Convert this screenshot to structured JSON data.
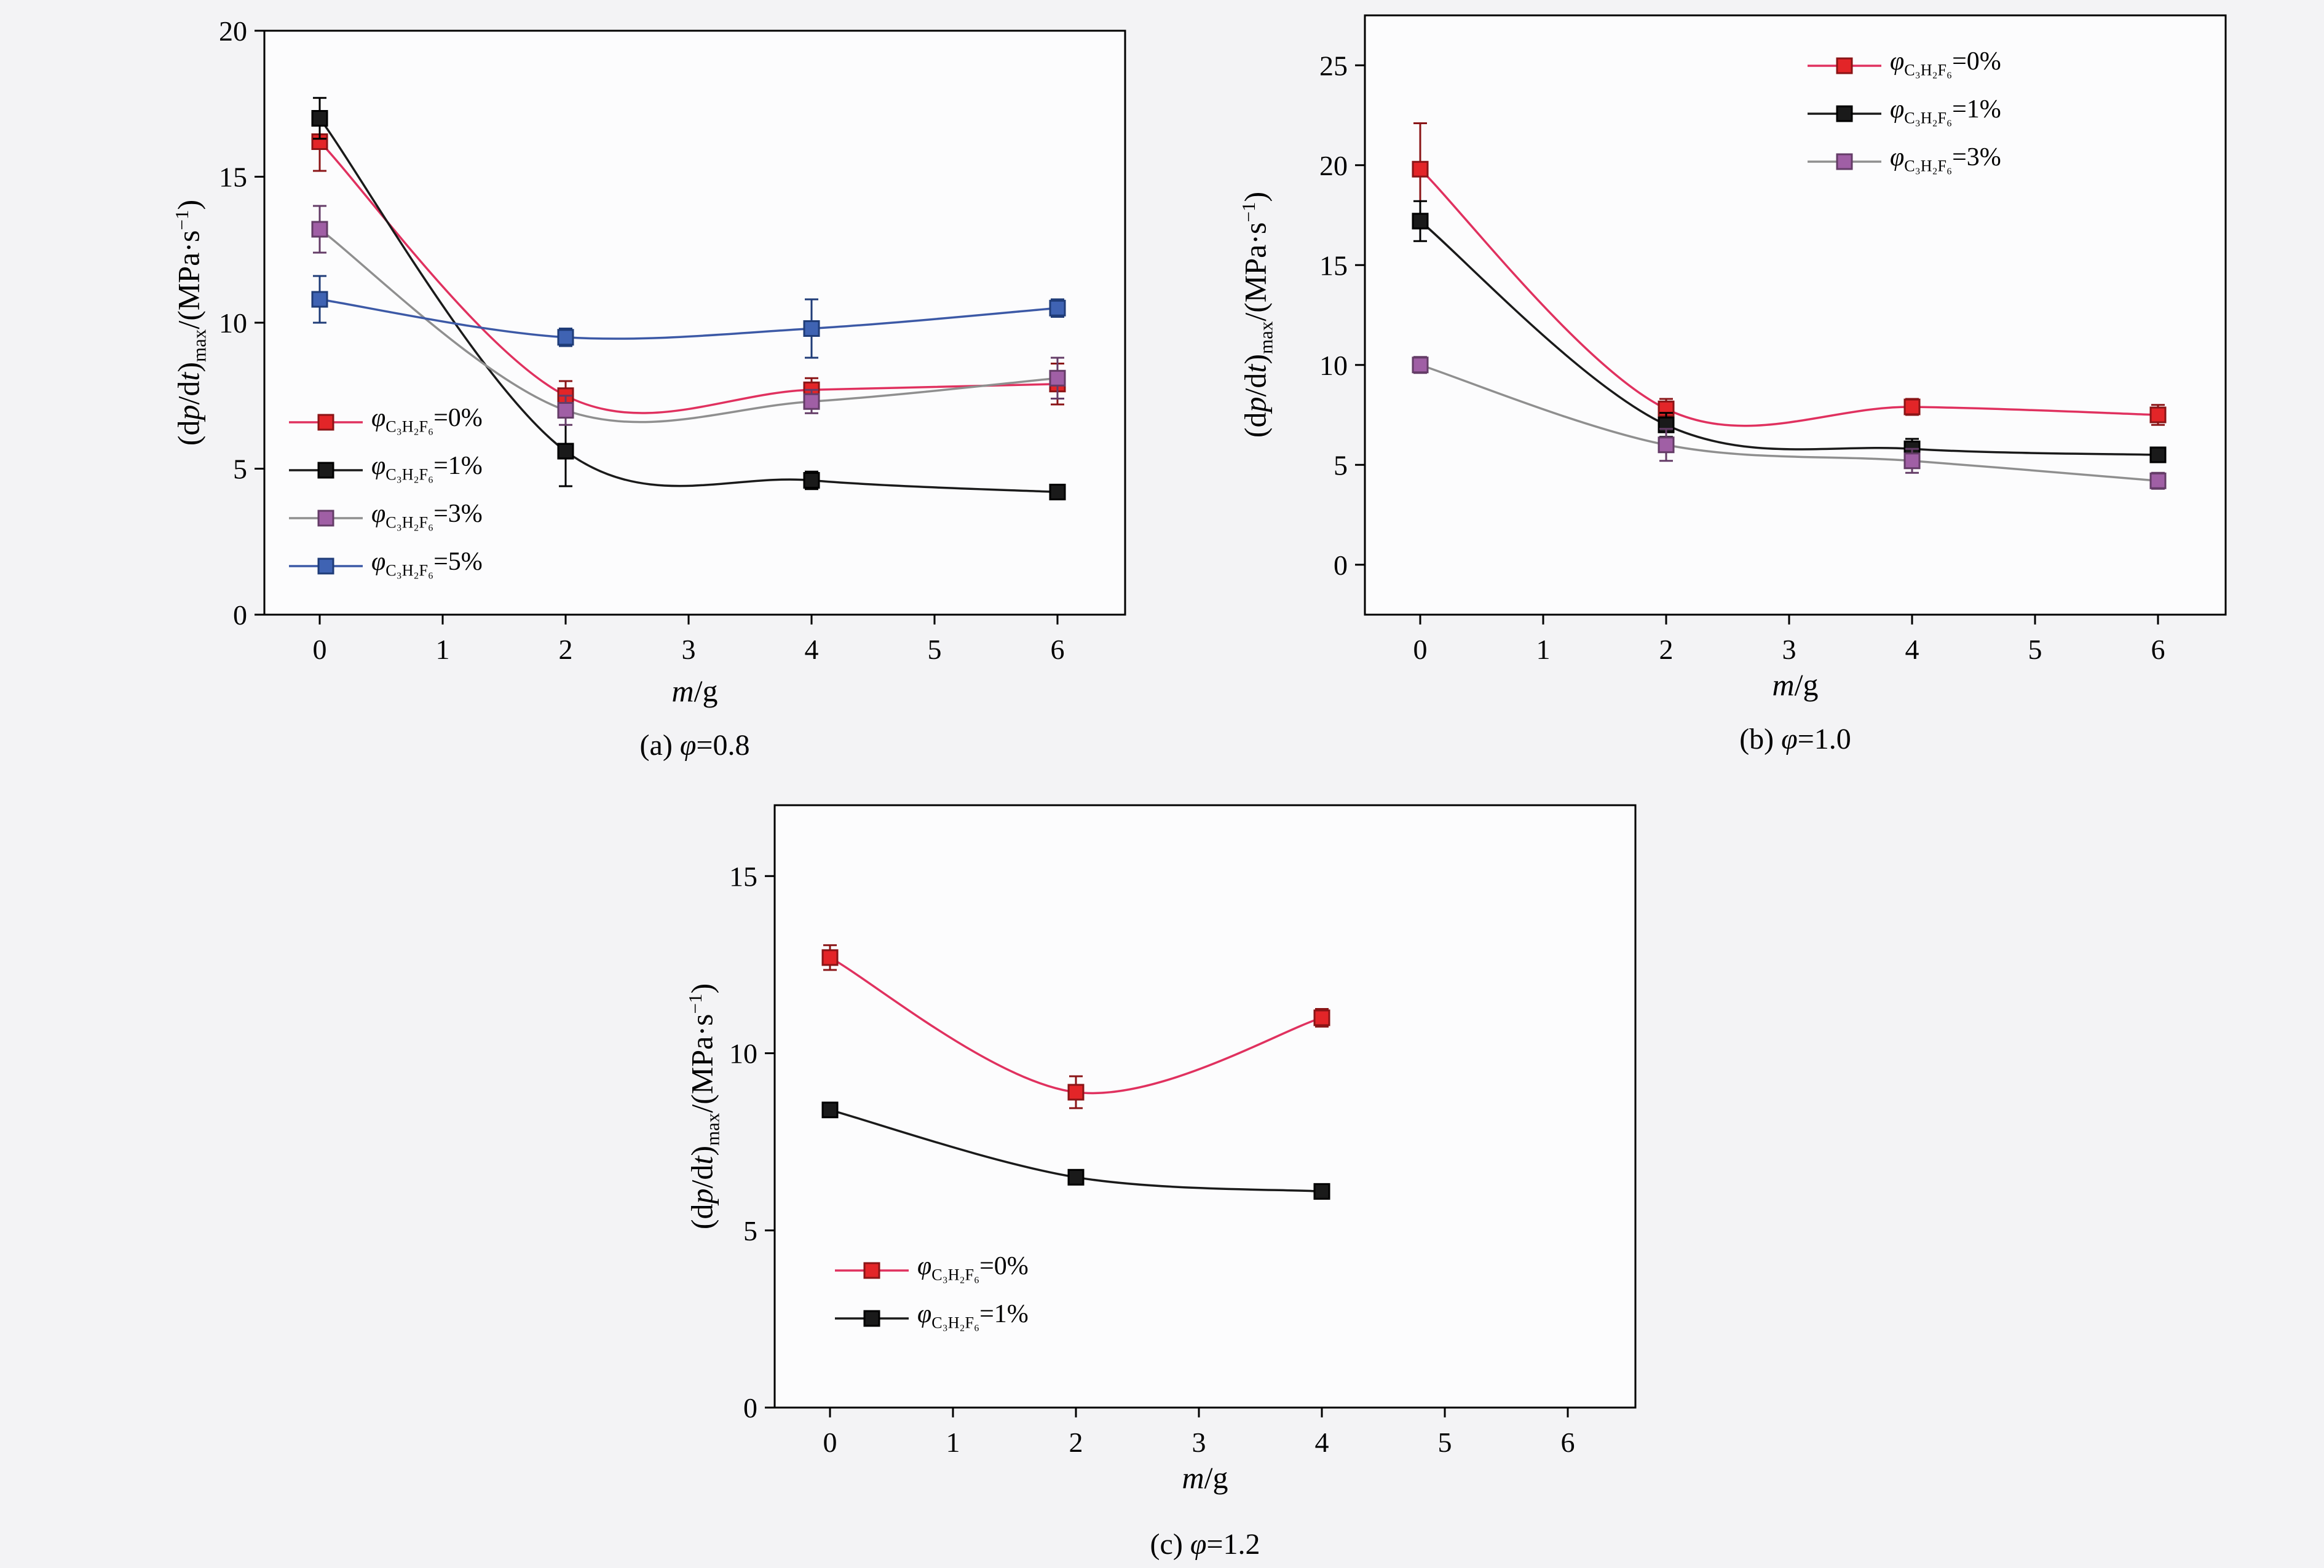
{
  "page": {
    "background": "#f3f3f5"
  },
  "charts": [
    {
      "id": "a",
      "caption_parts": [
        {
          "t": "(a) ",
          "s": "n"
        },
        {
          "t": "φ",
          "s": "i"
        },
        {
          "t": "=0.8",
          "s": "n"
        }
      ],
      "xlabel_parts": [
        {
          "t": "m",
          "s": "i"
        },
        {
          "t": "/g",
          "s": "n"
        }
      ],
      "ylabel_parts": [
        {
          "t": "(d",
          "s": "n"
        },
        {
          "t": "p",
          "s": "i"
        },
        {
          "t": "/d",
          "s": "n"
        },
        {
          "t": "t",
          "s": "i"
        },
        {
          "t": ")",
          "s": "n"
        },
        {
          "t": "max",
          "s": "sub"
        },
        {
          "t": "/(MPa·s",
          "s": "n"
        },
        {
          "t": "−1",
          "s": "sup"
        },
        {
          "t": ")",
          "s": "n"
        }
      ],
      "chart_data": {
        "type": "line",
        "x": [
          0,
          2,
          4,
          6
        ],
        "xlim": [
          -0.45,
          6.55
        ],
        "ylim": [
          0,
          20
        ],
        "xticks": [
          0,
          1,
          2,
          3,
          4,
          5,
          6
        ],
        "yticks": [
          0,
          5,
          10,
          15,
          20
        ],
        "legend_position": "lower-left",
        "grid": false,
        "series": [
          {
            "name": "φC₃H₂F₆=0%",
            "label_parts": [
              {
                "t": "φ",
                "s": "i"
              },
              {
                "t": "C₃H₂F₆",
                "s": "sub"
              },
              {
                "t": "=0%",
                "s": "n"
              }
            ],
            "line_color": "#e0315f",
            "marker_color": "#e32528",
            "marker_edge": "#8a1416",
            "y": [
              16.2,
              7.5,
              7.7,
              7.9
            ],
            "yerr": [
              1.0,
              0.5,
              0.4,
              0.7
            ]
          },
          {
            "name": "φC₃H₂F₆=1%",
            "label_parts": [
              {
                "t": "φ",
                "s": "i"
              },
              {
                "t": "C₃H₂F₆",
                "s": "sub"
              },
              {
                "t": "=1%",
                "s": "n"
              }
            ],
            "line_color": "#1a1a1a",
            "marker_color": "#1a1a1a",
            "marker_edge": "#000000",
            "y": [
              17.0,
              5.6,
              4.6,
              4.2
            ],
            "yerr": [
              0.7,
              1.2,
              0.3,
              0.2
            ]
          },
          {
            "name": "φC₃H₂F₆=3%",
            "label_parts": [
              {
                "t": "φ",
                "s": "i"
              },
              {
                "t": "C₃H₂F₆",
                "s": "sub"
              },
              {
                "t": "=3%",
                "s": "n"
              }
            ],
            "line_color": "#8f8f8f",
            "marker_color": "#a05fa5",
            "marker_edge": "#643c67",
            "y": [
              13.2,
              7.0,
              7.3,
              8.1
            ],
            "yerr": [
              0.8,
              0.5,
              0.4,
              0.7
            ]
          },
          {
            "name": "φC₃H₂F₆=5%",
            "label_parts": [
              {
                "t": "φ",
                "s": "i"
              },
              {
                "t": "C₃H₂F₆",
                "s": "sub"
              },
              {
                "t": "=5%",
                "s": "n"
              }
            ],
            "line_color": "#3c59a6",
            "marker_color": "#3f63b3",
            "marker_edge": "#1f3c78",
            "y": [
              10.8,
              9.5,
              9.8,
              10.5
            ],
            "yerr": [
              0.8,
              0.3,
              1.0,
              0.3
            ]
          }
        ]
      }
    },
    {
      "id": "b",
      "caption_parts": [
        {
          "t": "(b) ",
          "s": "n"
        },
        {
          "t": "φ",
          "s": "i"
        },
        {
          "t": "=1.0",
          "s": "n"
        }
      ],
      "xlabel_parts": [
        {
          "t": "m",
          "s": "i"
        },
        {
          "t": "/g",
          "s": "n"
        }
      ],
      "ylabel_parts": [
        {
          "t": "(d",
          "s": "n"
        },
        {
          "t": "p",
          "s": "i"
        },
        {
          "t": "/d",
          "s": "n"
        },
        {
          "t": "t",
          "s": "i"
        },
        {
          "t": ")",
          "s": "n"
        },
        {
          "t": "max",
          "s": "sub"
        },
        {
          "t": "/(MPa·s",
          "s": "n"
        },
        {
          "t": "−1",
          "s": "sup"
        },
        {
          "t": ")",
          "s": "n"
        }
      ],
      "chart_data": {
        "type": "line",
        "x": [
          0,
          2,
          4,
          6
        ],
        "xlim": [
          -0.45,
          6.55
        ],
        "ylim": [
          -2.5,
          27.5
        ],
        "xticks": [
          0,
          1,
          2,
          3,
          4,
          5,
          6
        ],
        "yticks": [
          0,
          5,
          10,
          15,
          20,
          25
        ],
        "legend_position": "upper-right",
        "grid": false,
        "series": [
          {
            "name": "φC₃H₂F₆=0%",
            "label_parts": [
              {
                "t": "φ",
                "s": "i"
              },
              {
                "t": "C₃H₂F₆",
                "s": "sub"
              },
              {
                "t": "=0%",
                "s": "n"
              }
            ],
            "line_color": "#e0315f",
            "marker_color": "#e32528",
            "marker_edge": "#8a1416",
            "y": [
              19.8,
              7.8,
              7.9,
              7.5
            ],
            "yerr": [
              2.3,
              0.5,
              0.4,
              0.5
            ]
          },
          {
            "name": "φC₃H₂F₆=1%",
            "label_parts": [
              {
                "t": "φ",
                "s": "i"
              },
              {
                "t": "C₃H₂F₆",
                "s": "sub"
              },
              {
                "t": "=1%",
                "s": "n"
              }
            ],
            "line_color": "#1a1a1a",
            "marker_color": "#1a1a1a",
            "marker_edge": "#000000",
            "y": [
              17.2,
              7.0,
              5.8,
              5.5
            ],
            "yerr": [
              1.0,
              0.6,
              0.5,
              0.3
            ]
          },
          {
            "name": "φC₃H₂F₆=3%",
            "label_parts": [
              {
                "t": "φ",
                "s": "i"
              },
              {
                "t": "C₃H₂F₆",
                "s": "sub"
              },
              {
                "t": "=3%",
                "s": "n"
              }
            ],
            "line_color": "#8f8f8f",
            "marker_color": "#a05fa5",
            "marker_edge": "#643c67",
            "y": [
              10.0,
              6.0,
              5.2,
              4.2
            ],
            "yerr": [
              0.4,
              0.8,
              0.6,
              0.4
            ]
          }
        ]
      }
    },
    {
      "id": "c",
      "caption_parts": [
        {
          "t": "(c) ",
          "s": "n"
        },
        {
          "t": "φ",
          "s": "i"
        },
        {
          "t": "=1.2",
          "s": "n"
        }
      ],
      "xlabel_parts": [
        {
          "t": "m",
          "s": "i"
        },
        {
          "t": "/g",
          "s": "n"
        }
      ],
      "ylabel_parts": [
        {
          "t": "(d",
          "s": "n"
        },
        {
          "t": "p",
          "s": "i"
        },
        {
          "t": "/d",
          "s": "n"
        },
        {
          "t": "t",
          "s": "i"
        },
        {
          "t": ")",
          "s": "n"
        },
        {
          "t": "max",
          "s": "sub"
        },
        {
          "t": "/(MPa·s",
          "s": "n"
        },
        {
          "t": "−1",
          "s": "sup"
        },
        {
          "t": ")",
          "s": "n"
        }
      ],
      "chart_data": {
        "type": "line",
        "x": [
          0,
          2,
          4
        ],
        "xlim": [
          -0.45,
          6.55
        ],
        "ylim": [
          0,
          17
        ],
        "xticks": [
          0,
          1,
          2,
          3,
          4,
          5,
          6
        ],
        "yticks": [
          0,
          5,
          10,
          15
        ],
        "legend_position": "lower-left",
        "grid": false,
        "series": [
          {
            "name": "φC₃H₂F₆=0%",
            "label_parts": [
              {
                "t": "φ",
                "s": "i"
              },
              {
                "t": "C₃H₂F₆",
                "s": "sub"
              },
              {
                "t": "=0%",
                "s": "n"
              }
            ],
            "line_color": "#e0315f",
            "marker_color": "#e32528",
            "marker_edge": "#8a1416",
            "y": [
              12.7,
              8.9,
              11.0
            ],
            "yerr": [
              0.35,
              0.45,
              0.25
            ]
          },
          {
            "name": "φC₃H₂F₆=1%",
            "label_parts": [
              {
                "t": "φ",
                "s": "i"
              },
              {
                "t": "C₃H₂F₆",
                "s": "sub"
              },
              {
                "t": "=1%",
                "s": "n"
              }
            ],
            "line_color": "#1a1a1a",
            "marker_color": "#1a1a1a",
            "marker_edge": "#000000",
            "y": [
              8.4,
              6.5,
              6.1
            ],
            "yerr": [
              0.2,
              0.2,
              0.15
            ]
          }
        ]
      }
    }
  ]
}
